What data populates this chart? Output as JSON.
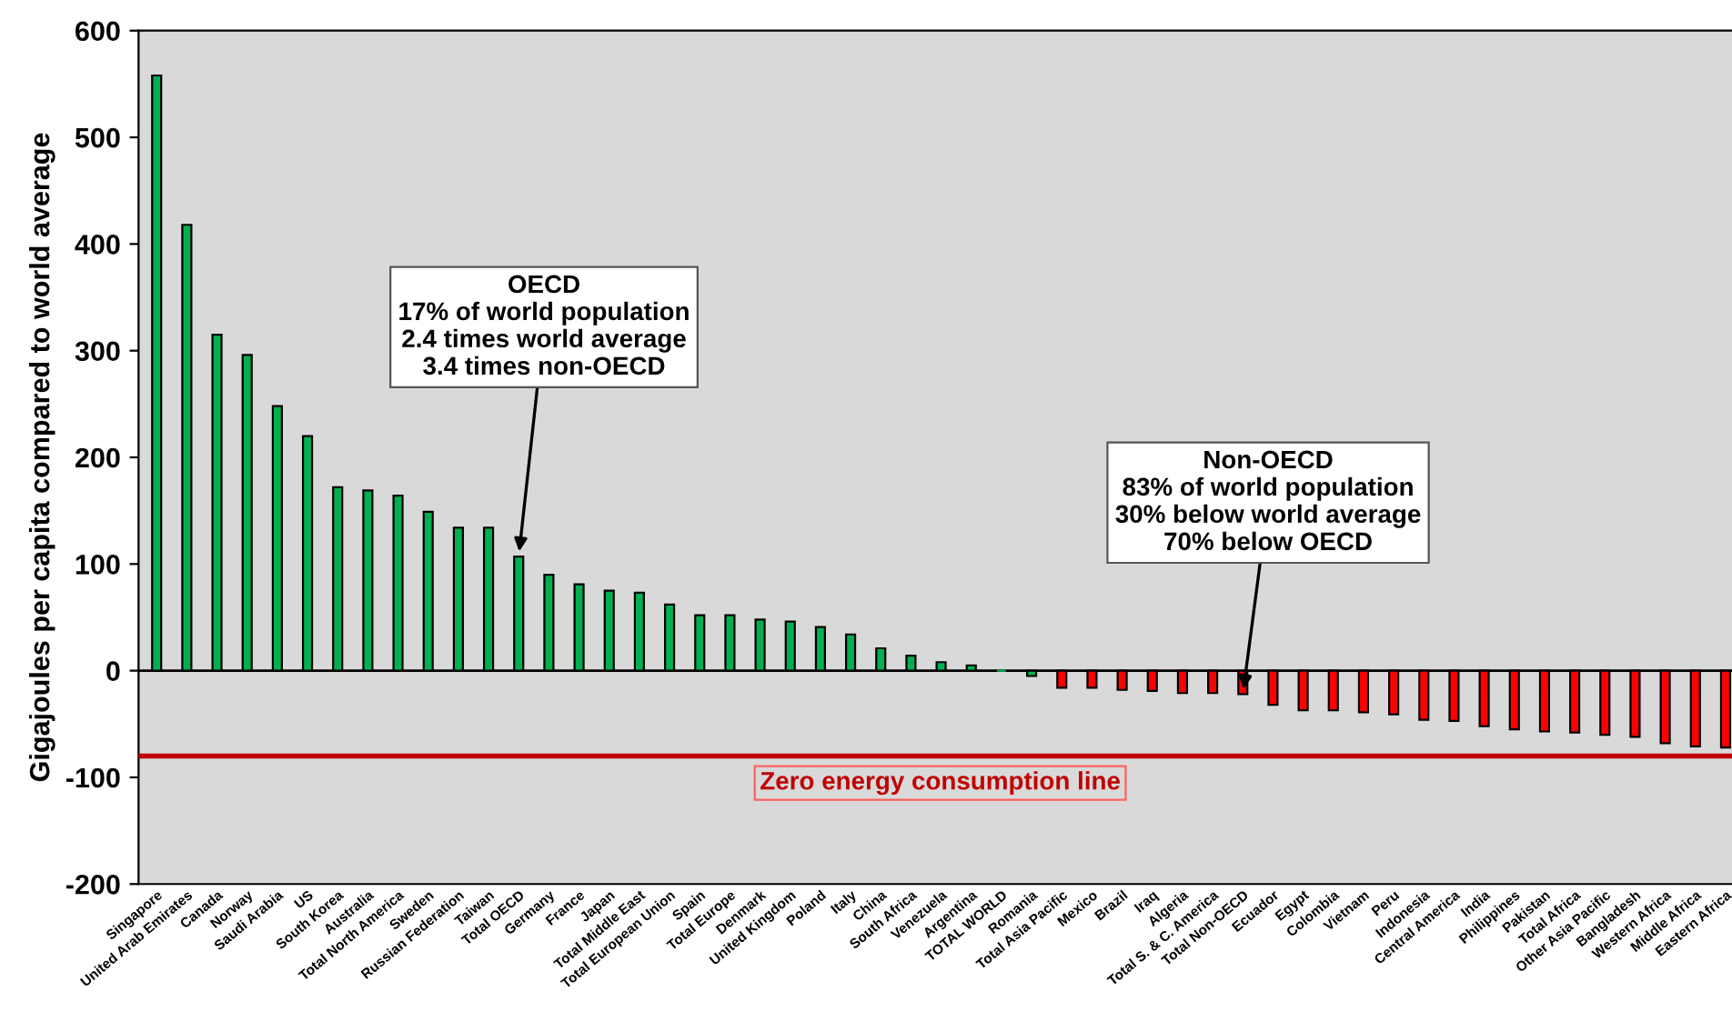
{
  "chart_data": {
    "type": "bar",
    "ylabel": "Gigajoules per capita compared to world average",
    "categories": [
      "Singapore",
      "United Arab Emirates",
      "Canada",
      "Norway",
      "Saudi Arabia",
      "US",
      "South Korea",
      "Australia",
      "Total North America",
      "Sweden",
      "Russian Federation",
      "Taiwan",
      "Total OECD",
      "Germany",
      "France",
      "Japan",
      "Total Middle East",
      "Total European Union",
      "Spain",
      "Total Europe",
      "Denmark",
      "United Kingdom",
      "Poland",
      "Italy",
      "China",
      "South Africa",
      "Venezuela",
      "Argentina",
      "TOTAL WORLD",
      "Romania",
      "Total Asia Pacific",
      "Mexico",
      "Brazil",
      "Iraq",
      "Algeria",
      "Total S. & C. America",
      "Total Non-OECD",
      "Ecuador",
      "Egypt",
      "Colombia",
      "Vietnam",
      "Peru",
      "Indonesia",
      "Central America",
      "India",
      "Philippines",
      "Pakistan",
      "Total Africa",
      "Other Asia Pacific",
      "Bangladesh",
      "Western Africa",
      "Middle Africa",
      "Eastern Africa"
    ],
    "values": [
      558,
      418,
      315,
      296,
      248,
      220,
      172,
      169,
      164,
      149,
      134,
      134,
      107,
      90,
      81,
      75,
      73,
      62,
      52,
      52,
      48,
      46,
      41,
      34,
      21,
      14,
      8,
      5,
      0,
      -5,
      -16,
      -16,
      -18,
      -19,
      -21,
      -21,
      -22,
      -32,
      -37,
      -37,
      -39,
      -41,
      -46,
      -47,
      -52,
      -55,
      -57,
      -58,
      -60,
      -62,
      -68,
      -71,
      -72
    ],
    "colors": [
      "#00b050",
      "#00b050",
      "#00b050",
      "#00b050",
      "#00b050",
      "#00b050",
      "#00b050",
      "#00b050",
      "#00b050",
      "#00b050",
      "#00b050",
      "#00b050",
      "#00b050",
      "#00b050",
      "#00b050",
      "#00b050",
      "#00b050",
      "#00b050",
      "#00b050",
      "#00b050",
      "#00b050",
      "#00b050",
      "#00b050",
      "#00b050",
      "#00b050",
      "#00b050",
      "#00b050",
      "#00b050",
      "#00b050",
      "#00b050",
      "#ff0000",
      "#ff0000",
      "#ff0000",
      "#ff0000",
      "#ff0000",
      "#ff0000",
      "#ff0000",
      "#ff0000",
      "#ff0000",
      "#ff0000",
      "#ff0000",
      "#ff0000",
      "#ff0000",
      "#ff0000",
      "#ff0000",
      "#ff0000",
      "#ff0000",
      "#ff0000",
      "#ff0000",
      "#ff0000",
      "#ff0000",
      "#ff0000",
      "#ff0000"
    ],
    "ylim": [
      -200,
      600
    ],
    "yticks": [
      -200,
      -100,
      0,
      100,
      200,
      300,
      400,
      500,
      600
    ],
    "ref_lines": [
      {
        "axis": "y",
        "value": -80,
        "label": "Zero energy consumption line",
        "color": "#c00000"
      }
    ],
    "annotations": [
      {
        "text": "OECD\n17% of world population\n2.4 times world average\n3.4 times non-OECD",
        "x": "Total OECD",
        "y": 107
      },
      {
        "text": "Non-OECD\n83% of world population\n30% below world average\n70% below OECD",
        "x": "Total Non-OECD",
        "y": -22
      }
    ],
    "legend": false
  }
}
